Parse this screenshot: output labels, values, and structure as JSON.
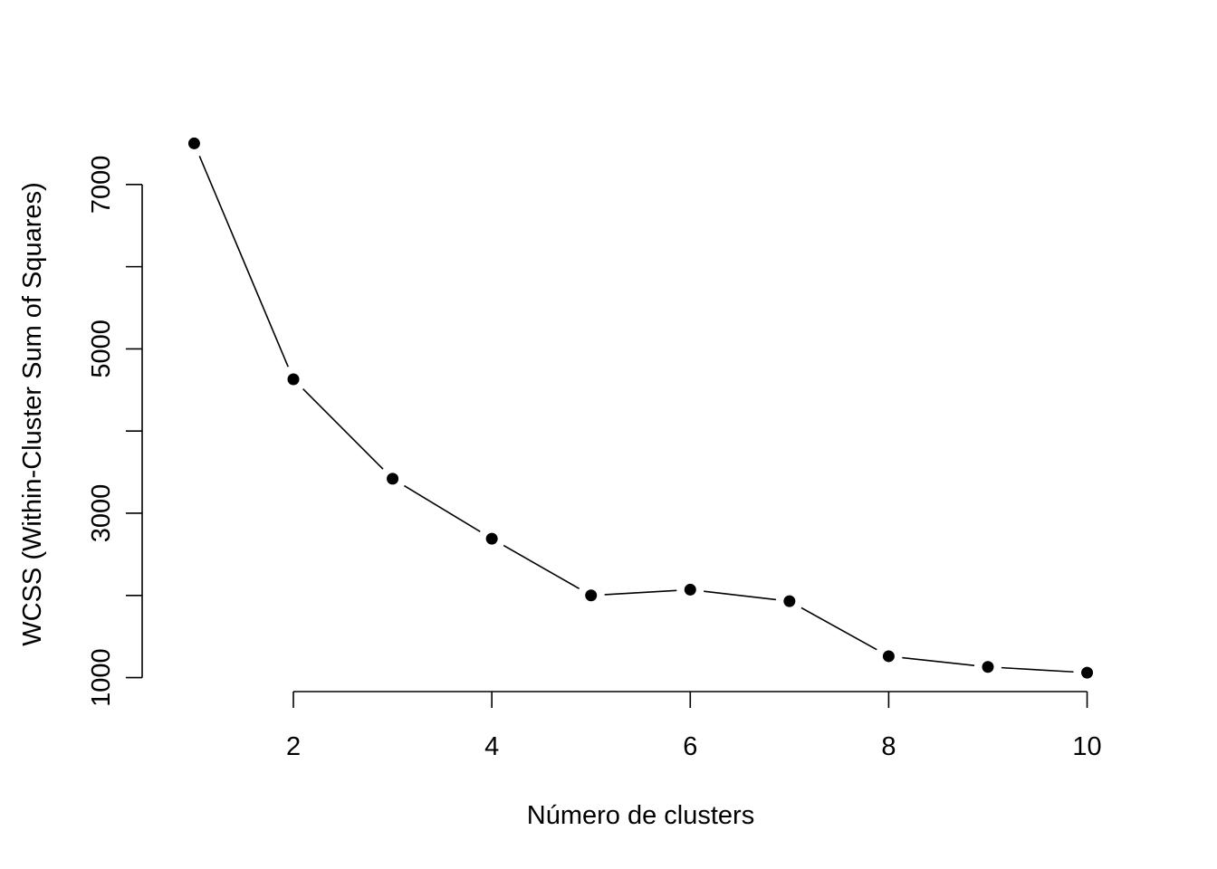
{
  "chart_data": {
    "type": "line",
    "title": "",
    "xlabel": "Número de clusters",
    "ylabel": "WCSS (Within-Cluster Sum of Squares)",
    "x": [
      1,
      2,
      3,
      4,
      5,
      6,
      7,
      8,
      9,
      10
    ],
    "series": [
      {
        "values": [
          7500,
          4630,
          3420,
          2690,
          2000,
          2070,
          1930,
          1260,
          1130,
          1060
        ]
      }
    ],
    "xlim": [
      0.64,
      10.36
    ],
    "ylim": [
      852,
      7648
    ],
    "x_ticks": [
      2,
      4,
      6,
      8,
      10
    ],
    "x_tick_labels": [
      "2",
      "4",
      "6",
      "8",
      "10"
    ],
    "y_ticks": [
      1000,
      2000,
      3000,
      4000,
      5000,
      6000,
      7000
    ],
    "y_tick_labels": [
      "1000",
      "",
      "3000",
      "",
      "5000",
      "",
      "7000"
    ],
    "grid": false,
    "legend": "none",
    "marker": "filled-circle",
    "line_style": "gapped-segments",
    "colors": {
      "line": "#000000",
      "marker": "#000000"
    }
  }
}
